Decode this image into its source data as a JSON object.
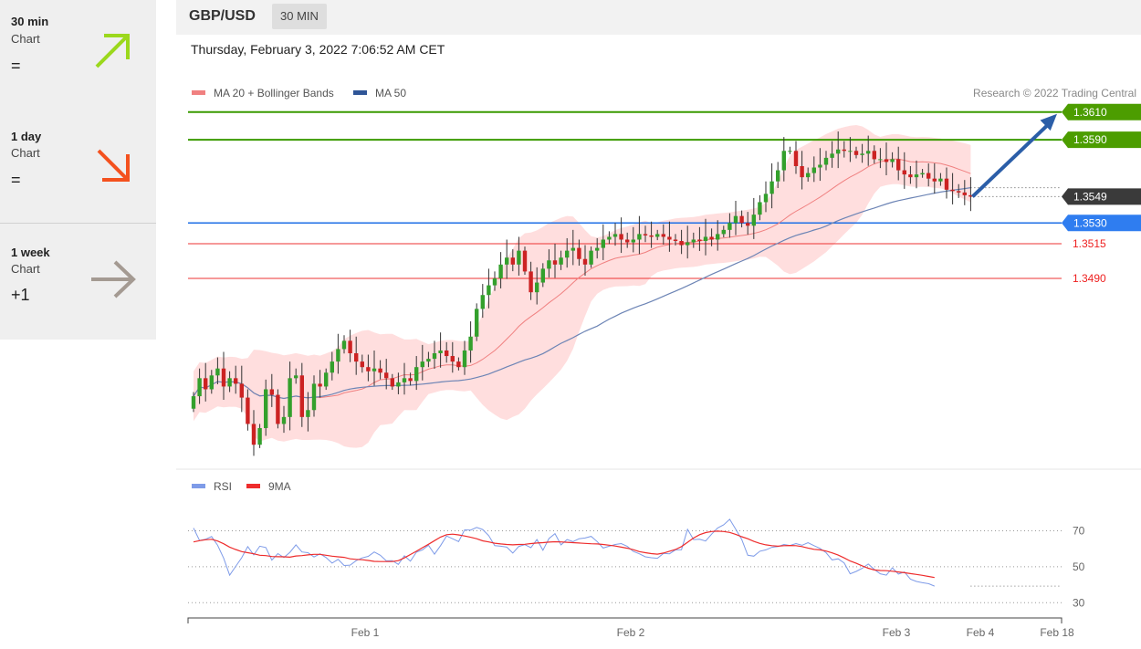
{
  "sidebar": {
    "items": [
      {
        "title": "30 min",
        "sub": "Chart",
        "value": "=",
        "icon": "arrow-up-right-icon",
        "color": "#9bd81c"
      },
      {
        "title": "1 day",
        "sub": "Chart",
        "value": "=",
        "icon": "arrow-down-right-icon",
        "color": "#f4511e"
      },
      {
        "title": "1 week",
        "sub": "Chart",
        "value": "+1",
        "icon": "arrow-right-icon",
        "color": "#a49a92"
      }
    ]
  },
  "header": {
    "pair": "GBP/USD",
    "timeframe": "30 MIN"
  },
  "timestamp": "Thursday, February 3, 2022 7:06:52 AM CET",
  "legend": {
    "ma20": "MA 20 + Bollinger Bands",
    "ma50": "MA 50",
    "credit": "Research © 2022 Trading Central"
  },
  "rsi_legend": {
    "rsi": "RSI",
    "ma9": "9MA"
  },
  "colors": {
    "up": "#33a02c",
    "down": "#cc2222",
    "resistance": "#3a9a00",
    "support": "#1e6fe6",
    "minor": "#ee3333",
    "current": "#3a3a3a",
    "ma20": "#f08080",
    "bands": "#ffdede",
    "ma50": "#6c84b5",
    "rsi": "#7e9be8",
    "rsi_ma": "#ee2c2c",
    "target_arrow": "#2b5ea8"
  },
  "chart_data": [
    {
      "type": "candlestick",
      "title": "GBP/USD",
      "ylim": [
        1.3355,
        1.3625
      ],
      "x_labels": [
        "Feb 1",
        "Feb 2",
        "Feb 3",
        "Feb 4",
        "Feb 18"
      ],
      "levels": [
        {
          "value": 1.361,
          "label": "1.3610",
          "kind": "resistance"
        },
        {
          "value": 1.359,
          "label": "1.3590",
          "kind": "resistance"
        },
        {
          "value": 1.3549,
          "label": "1.3549",
          "kind": "current"
        },
        {
          "value": 1.353,
          "label": "1.3530",
          "kind": "support"
        },
        {
          "value": 1.3515,
          "label": "1.3515",
          "kind": "minor"
        },
        {
          "value": 1.349,
          "label": "1.3490",
          "kind": "minor"
        }
      ],
      "target_arrow": {
        "from": 1.3549,
        "to": 1.361
      },
      "closes": [
        1.3405,
        1.3418,
        1.341,
        1.342,
        1.3425,
        1.3412,
        1.3418,
        1.3414,
        1.3404,
        1.3385,
        1.337,
        1.3382,
        1.341,
        1.3406,
        1.3385,
        1.339,
        1.3418,
        1.342,
        1.339,
        1.3395,
        1.3414,
        1.3412,
        1.3422,
        1.343,
        1.3439,
        1.3445,
        1.3436,
        1.343,
        1.3426,
        1.3423,
        1.3425,
        1.3422,
        1.3418,
        1.3412,
        1.3415,
        1.3418,
        1.3416,
        1.3426,
        1.343,
        1.3432,
        1.3436,
        1.3438,
        1.3434,
        1.343,
        1.3426,
        1.3438,
        1.3448,
        1.3468,
        1.3478,
        1.3485,
        1.349,
        1.35,
        1.3505,
        1.35,
        1.351,
        1.3495,
        1.348,
        1.3487,
        1.3497,
        1.3503,
        1.35,
        1.3505,
        1.351,
        1.3512,
        1.3504,
        1.35,
        1.351,
        1.3512,
        1.3518,
        1.352,
        1.3522,
        1.3518,
        1.3516,
        1.3518,
        1.3522,
        1.3521,
        1.352,
        1.3522,
        1.352,
        1.3518,
        1.3517,
        1.3514,
        1.3516,
        1.3518,
        1.3517,
        1.352,
        1.3518,
        1.3522,
        1.3525,
        1.353,
        1.3535,
        1.353,
        1.3528,
        1.3536,
        1.3545,
        1.3551,
        1.356,
        1.3568,
        1.3582,
        1.3582,
        1.3571,
        1.3563,
        1.3566,
        1.357,
        1.3572,
        1.3577,
        1.358,
        1.3583,
        1.3582,
        1.3582,
        1.3579,
        1.358,
        1.3582,
        1.3576,
        1.3576,
        1.3574,
        1.3576,
        1.3568,
        1.3565,
        1.3563,
        1.3565,
        1.3566,
        1.3562,
        1.356,
        1.3562,
        1.3554,
        1.3553,
        1.3552,
        1.355,
        1.3549
      ]
    },
    {
      "type": "line",
      "title": "RSI",
      "ylim": [
        22,
        86
      ],
      "yticks": [
        30,
        50,
        70
      ],
      "series": [
        {
          "name": "RSI",
          "values": [
            71.5,
            64.6,
            65.3,
            66.8,
            61.9,
            54.8,
            45.3,
            50.2,
            55.0,
            61.2,
            56.6,
            61.4,
            60.7,
            53.7,
            57.3,
            55.1,
            58.0,
            62.2,
            58.2,
            57.8,
            55.4,
            57.2,
            55.1,
            52.0,
            54.1,
            50.7,
            50.9,
            53.4,
            54.9,
            55.8,
            58.2,
            56.4,
            53.3,
            53.4,
            51.3,
            56.1,
            53.1,
            58.1,
            59.4,
            61.9,
            57.0,
            61.7,
            67.1,
            65.6,
            64.0,
            70.5,
            70.4,
            71.9,
            70.7,
            67.3,
            61.7,
            61.4,
            60.9,
            57.6,
            61.3,
            62.3,
            60.6,
            65.1,
            59.2,
            65.7,
            68.4,
            62.2,
            65.1,
            64.0,
            65.6,
            66.0,
            66.9,
            64.0,
            60.4,
            61.4,
            62.4,
            62.9,
            61.3,
            58.5,
            57.2,
            55.5,
            55.0,
            54.7,
            57.4,
            57.2,
            59.4,
            59.5,
            70.8,
            65.1,
            65.3,
            64.3,
            68.1,
            71.6,
            73.3,
            76.4,
            70.9,
            65.2,
            56.4,
            55.9,
            58.6,
            59.4,
            60.8,
            61.2,
            62.4,
            61.8,
            62.9,
            61.9,
            63.4,
            61.7,
            60.2,
            57.8,
            53.8,
            54.4,
            52.1,
            46.1,
            47.4,
            49.1,
            51.5,
            48.5,
            46.1,
            45.3,
            49.4,
            45.9,
            47.1,
            43.1,
            41.8,
            41.1,
            40.6,
            39.2
          ]
        },
        {
          "name": "9MA",
          "values": [
            63.8,
            64.5,
            65.0,
            65.3,
            64.3,
            62.8,
            60.9,
            59.6,
            58.4,
            57.8,
            57.2,
            56.4,
            56.2,
            55.7,
            55.6,
            55.5,
            55.3,
            56.0,
            56.2,
            56.6,
            56.9,
            56.9,
            56.4,
            55.9,
            55.5,
            55.2,
            54.4,
            54.1,
            53.9,
            53.5,
            53.0,
            52.9,
            52.9,
            52.9,
            53.4,
            54.9,
            56.8,
            58.6,
            60.6,
            62.5,
            64.5,
            66.5,
            67.8,
            68.1,
            67.7,
            67.1,
            66.4,
            65.6,
            64.4,
            63.8,
            63.1,
            62.7,
            62.4,
            62.2,
            62.4,
            62.5,
            62.9,
            63.2,
            63.4,
            63.7,
            63.9,
            63.8,
            63.6,
            63.4,
            63.2,
            63.0,
            62.8,
            62.7,
            62.4,
            62.0,
            61.5,
            60.9,
            60.3,
            59.5,
            58.4,
            57.8,
            57.3,
            57.0,
            57.6,
            58.6,
            59.6,
            61.2,
            63.6,
            66.0,
            67.8,
            69.0,
            69.6,
            69.8,
            69.6,
            69.1,
            68.0,
            66.7,
            65.6,
            64.1,
            63.0,
            62.2,
            61.7,
            61.4,
            61.7,
            61.8,
            61.7,
            61.2,
            60.4,
            59.7,
            59.4,
            58.7,
            57.7,
            56.5,
            54.9,
            53.2,
            51.9,
            50.5,
            49.2,
            48.2,
            47.9,
            47.8,
            47.5,
            47.1,
            46.7,
            46.2,
            45.7,
            45.2,
            44.6,
            44.0
          ]
        }
      ],
      "guide_value": 39.2
    }
  ]
}
